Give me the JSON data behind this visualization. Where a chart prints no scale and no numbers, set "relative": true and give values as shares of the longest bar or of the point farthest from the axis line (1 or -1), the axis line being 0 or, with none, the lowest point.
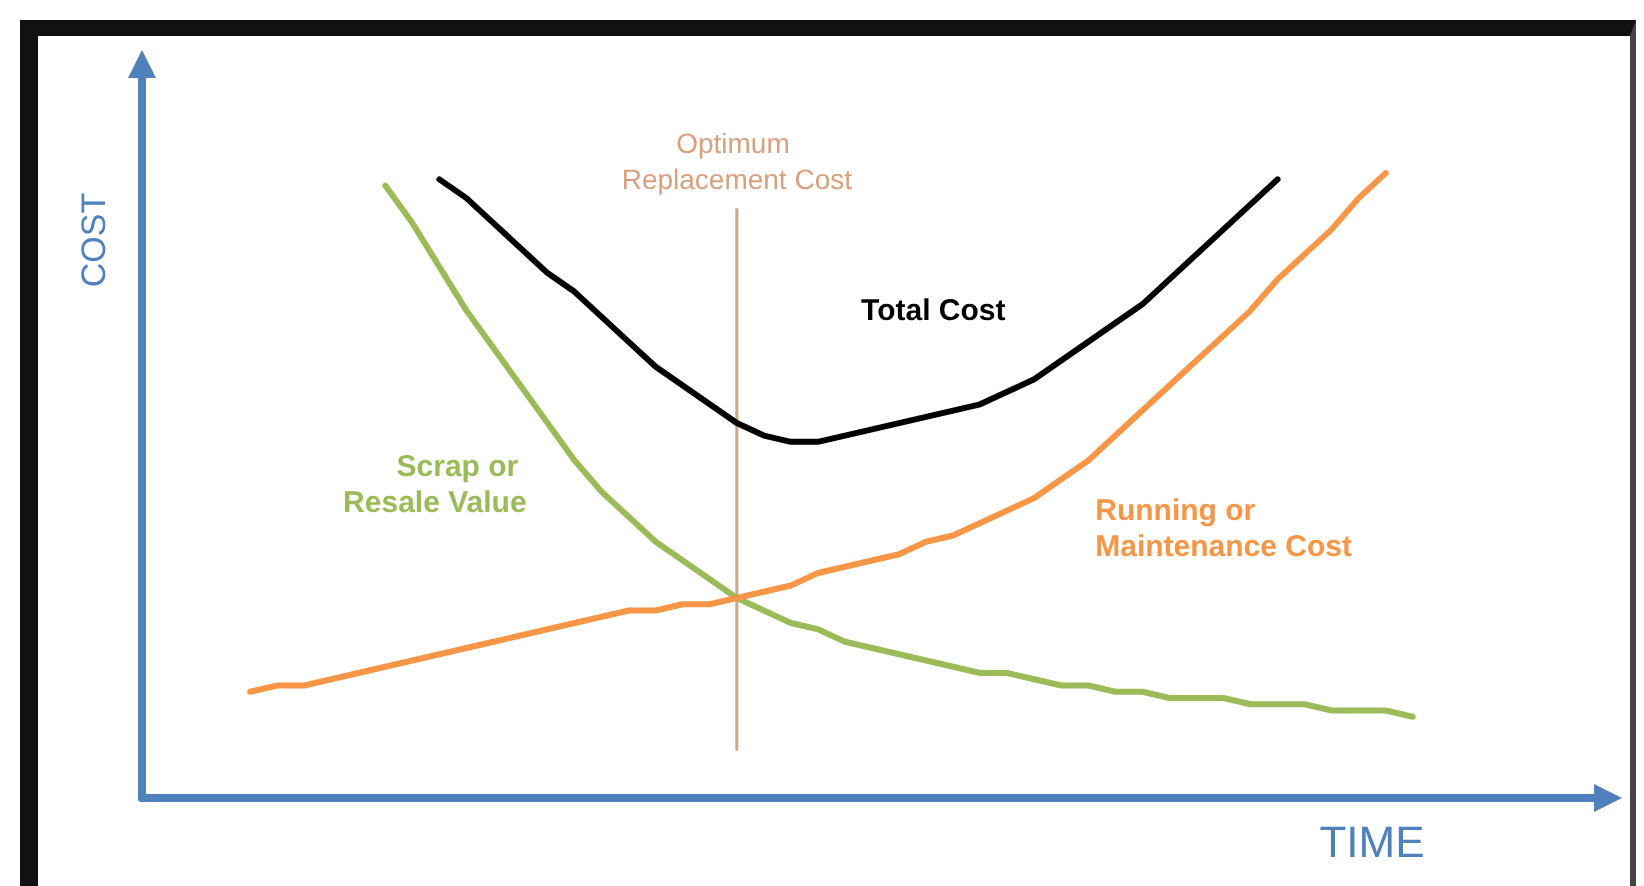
{
  "chart_data": {
    "type": "line",
    "xlabel": "TIME",
    "ylabel": "COST",
    "relative": true,
    "tick_labels": false,
    "marker": "none",
    "line_style": "solid",
    "categories": [
      null,
      null,
      null,
      null,
      null,
      null,
      null,
      null,
      null,
      null,
      null,
      null,
      null,
      null,
      null,
      null,
      null,
      null,
      null,
      null,
      null,
      null,
      null,
      null,
      null,
      null,
      null,
      null,
      null,
      null,
      null,
      null,
      null,
      null,
      null,
      null,
      null,
      null,
      null,
      null,
      null,
      null,
      null,
      null,
      null,
      null,
      null,
      null,
      null,
      null,
      null,
      null,
      null,
      null,
      null
    ],
    "series": [
      {
        "name": "Total Cost",
        "color": "#000000",
        "values": [
          null,
          null,
          null,
          null,
          null,
          null,
          null,
          null,
          null,
          null,
          null,
          0.99,
          0.96,
          0.92,
          0.88,
          0.84,
          0.81,
          0.77,
          0.73,
          0.69,
          0.66,
          0.63,
          0.6,
          0.58,
          0.57,
          0.57,
          0.58,
          0.59,
          0.6,
          0.61,
          0.62,
          0.63,
          0.65,
          0.67,
          0.7,
          0.73,
          0.76,
          0.79,
          0.83,
          0.87,
          0.91,
          0.95,
          0.99,
          null,
          null,
          null,
          null,
          null,
          null,
          null,
          null,
          null,
          null,
          null,
          null
        ]
      },
      {
        "name": "Scrap or Resale Value",
        "color": "#9bbb59",
        "values": [
          null,
          null,
          null,
          null,
          null,
          null,
          null,
          null,
          null,
          0.98,
          0.92,
          0.85,
          0.78,
          0.72,
          0.66,
          0.6,
          0.54,
          0.49,
          0.45,
          0.41,
          0.38,
          0.35,
          0.32,
          0.3,
          0.28,
          0.27,
          0.25,
          0.24,
          0.23,
          0.22,
          0.21,
          0.2,
          0.2,
          0.19,
          0.18,
          0.18,
          0.17,
          0.17,
          0.16,
          0.16,
          0.16,
          0.15,
          0.15,
          0.15,
          0.14,
          0.14,
          0.14,
          0.13,
          null,
          null,
          null,
          null,
          null,
          null,
          null
        ]
      },
      {
        "name": "Running or Maintenance Cost",
        "color": "#f79646",
        "values": [
          null,
          null,
          null,
          null,
          0.17,
          0.18,
          0.18,
          0.19,
          0.2,
          0.21,
          0.22,
          0.23,
          0.24,
          0.25,
          0.26,
          0.27,
          0.28,
          0.29,
          0.3,
          0.3,
          0.31,
          0.31,
          0.32,
          0.33,
          0.34,
          0.36,
          0.37,
          0.38,
          0.39,
          0.41,
          0.42,
          0.44,
          0.46,
          0.48,
          0.51,
          0.54,
          0.58,
          0.62,
          0.66,
          0.7,
          0.74,
          0.78,
          0.83,
          0.87,
          0.91,
          0.96,
          1,
          null,
          null,
          null,
          null,
          null,
          null,
          null,
          null
        ]
      }
    ],
    "annotations": [
      "Optimum Replacement Cost"
    ]
  }
}
